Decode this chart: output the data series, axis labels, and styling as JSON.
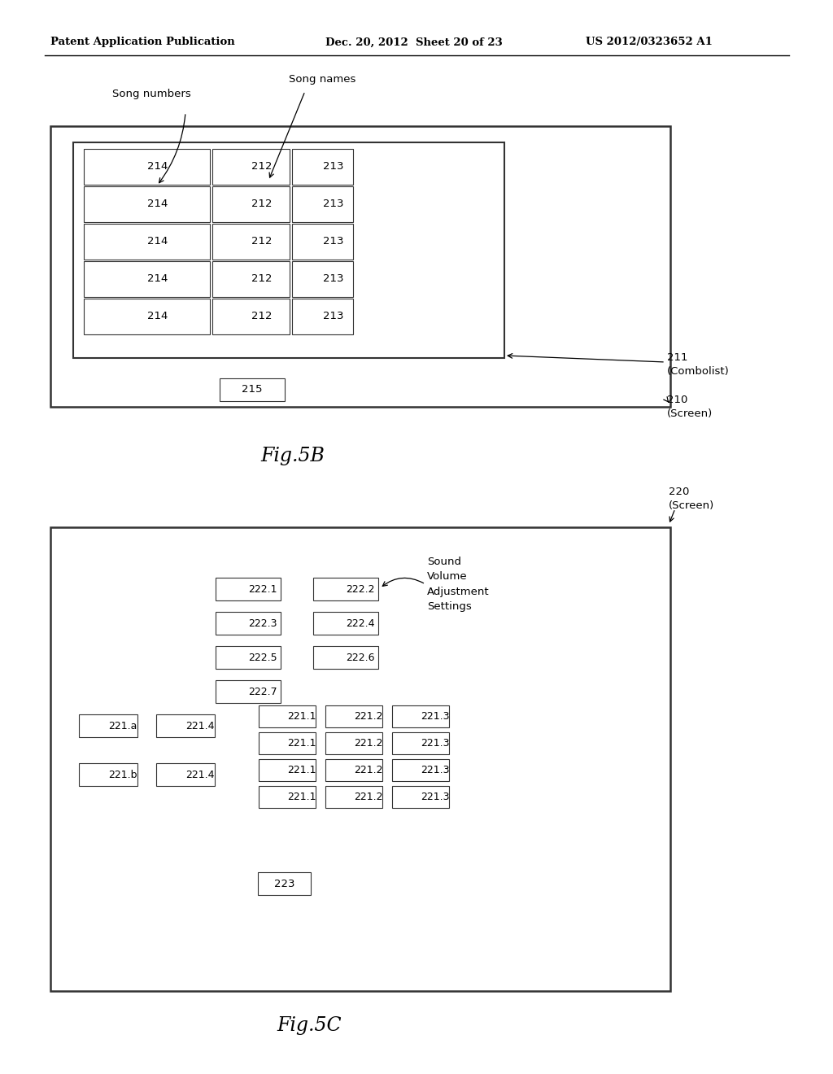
{
  "bg_color": "#ffffff",
  "header_left": "Patent Application Publication",
  "header_mid": "Dec. 20, 2012  Sheet 20 of 23",
  "header_right": "US 2012/0323652 A1",
  "fig5b_label": "Fig.5B",
  "fig5c_label": "Fig.5C",
  "label_song_numbers": "Song numbers",
  "label_song_names": "Song names",
  "label_211": "211\n(Combolist)",
  "label_210": "210\n(Screen)",
  "label_220": "220\n(Screen)",
  "label_sound": "Sound\nVolume\nAdjustment\nSettings",
  "label_215": "215",
  "label_223": "223",
  "col1_label": "214",
  "col2_label": "212",
  "col3_label": "213",
  "boxes_left_222": [
    "222.1",
    "222.3",
    "222.5",
    "222.7"
  ],
  "boxes_right_222": [
    "222.2",
    "222.4",
    "222.6"
  ],
  "col_a_221": [
    "221.a",
    "221.b"
  ],
  "col_b_221": [
    "221.4",
    "221.4"
  ],
  "col_c_label": "221.1",
  "col_d_label": "221.2",
  "col_e_label": "221.3"
}
